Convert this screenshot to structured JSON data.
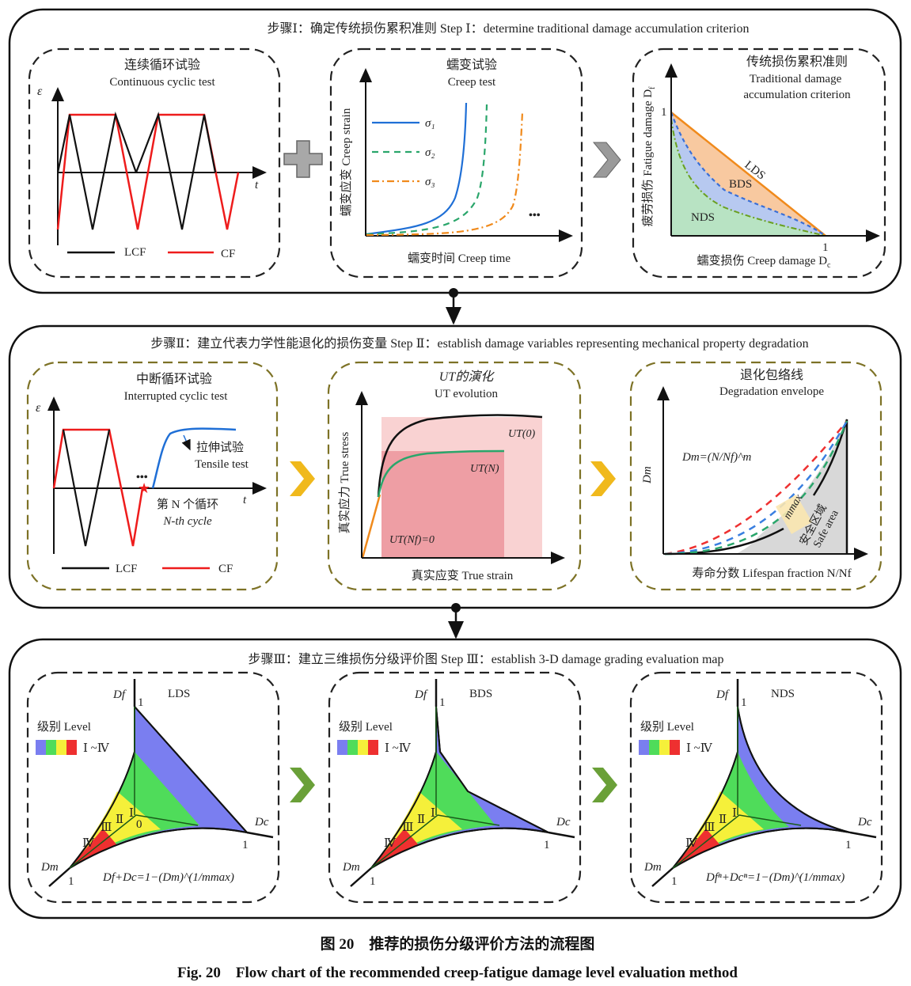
{
  "colors": {
    "lcf": "#111111",
    "cf": "#ee1c1c",
    "sigma1": "#1f6fd6",
    "sigma2": "#2aa66b",
    "sigma3": "#f08a1c",
    "lds": "#f5a05a",
    "bds": "#9bb8ee",
    "nds": "#a8dcb8",
    "level_1": "#7a7ef0",
    "level_2": "#4fdc5a",
    "level_3": "#f5f03a",
    "level_4": "#ee3030",
    "chevron_step1": "#8a8a8a",
    "chevron_step2": "#f0b91c",
    "chevron_step3": "#6aa038",
    "dash_box_step2": "#7d7226"
  },
  "step1": {
    "title": "步骤Ⅰ：确定传统损伤累积准则 Step Ⅰ：determine traditional damage accumulation criterion",
    "continuous": {
      "title_cn": "连续循环试验",
      "title_en": "Continuous cyclic test",
      "y_axis": "ε",
      "x_axis": "t",
      "legend": [
        "LCF",
        "CF"
      ]
    },
    "combine_icon": "plus-icon",
    "creep": {
      "title_cn": "蠕变试验",
      "title_en": "Creep test",
      "y_axis": "蠕变应变 Creep strain",
      "x_axis": "蠕变时间 Creep time",
      "legend": [
        "σ₁",
        "σ₂",
        "σ₃"
      ],
      "ellipsis": "•••"
    },
    "next_icon": "chevron-right-icon",
    "criterion": {
      "title_cn": "传统损伤累积准则",
      "title_en_1": "Traditional damage",
      "title_en_2": "accumulation criterion",
      "y_axis": "疲劳损伤 Fatigue damage D",
      "y_sub": "f",
      "x_axis": "蠕变损伤 Creep damage D",
      "x_sub": "c",
      "tick": "1",
      "regions": [
        "LDS",
        "BDS",
        "NDS"
      ]
    }
  },
  "step2": {
    "title": "步骤Ⅱ：建立代表力学性能退化的损伤变量 Step Ⅱ：establish damage variables representing mechanical property degradation",
    "interrupted": {
      "title_cn": "中断循环试验",
      "title_en": "Interrupted cyclic test",
      "y_axis": "ε",
      "x_axis": "t",
      "ellipsis": "•••",
      "tensile_cn": "拉伸试验",
      "tensile_en": "Tensile test",
      "cycle_cn": "第 N 个循环",
      "cycle_en": "N-th cycle",
      "legend": [
        "LCF",
        "CF"
      ]
    },
    "ut": {
      "title_cn": "UT的演化",
      "title_en": "UT evolution",
      "y_axis": "真实应力 True stress",
      "x_axis": "真实应变 True strain",
      "labels": [
        "UT(0)",
        "UT(N)",
        "UT(Nf)=0"
      ]
    },
    "envelope": {
      "title_cn": "退化包络线",
      "title_en": "Degradation envelope",
      "y_axis": "Dm",
      "formula": "Dm=(N/Nf)^m",
      "mmax": "mmax",
      "safe_cn": "安全区域",
      "safe_en": "Safe area",
      "x_axis": "寿命分数 Lifespan fraction N/Nf"
    }
  },
  "step3": {
    "title": "步骤Ⅲ：建立三维损伤分级评价图 Step Ⅲ：establish 3-D damage grading evaluation map",
    "maps": [
      {
        "name": "LDS",
        "level": "级别 Level",
        "range": "Ⅰ ~Ⅳ",
        "df": "Df",
        "dc": "Dc",
        "dm": "Dm",
        "one": "1",
        "origin": "0",
        "levels": [
          "Ⅳ",
          "Ⅲ",
          "Ⅱ",
          "Ⅰ"
        ],
        "formula": "Df+Dc=1−(Dm)^(1/mmax)"
      },
      {
        "name": "BDS",
        "level": "级别 Level",
        "range": "Ⅰ ~Ⅳ",
        "df": "Df",
        "dc": "Dc",
        "dm": "Dm",
        "one": "1",
        "origin": "",
        "levels": [
          "Ⅳ",
          "Ⅲ",
          "Ⅱ",
          "Ⅰ"
        ],
        "formula": ""
      },
      {
        "name": "NDS",
        "level": "级别 Level",
        "range": "Ⅰ ~Ⅳ",
        "df": "Df",
        "dc": "Dc",
        "dm": "Dm",
        "one": "1",
        "origin": "",
        "levels": [
          "Ⅳ",
          "Ⅲ",
          "Ⅱ",
          "Ⅰ"
        ],
        "formula": "Dfⁿ+Dcⁿ=1−(Dm)^(1/mmax)"
      }
    ]
  },
  "caption": {
    "cn": "图 20　推荐的损伤分级评价方法的流程图",
    "en": "Fig. 20　Flow chart of the recommended creep-fatigue damage level evaluation method"
  }
}
